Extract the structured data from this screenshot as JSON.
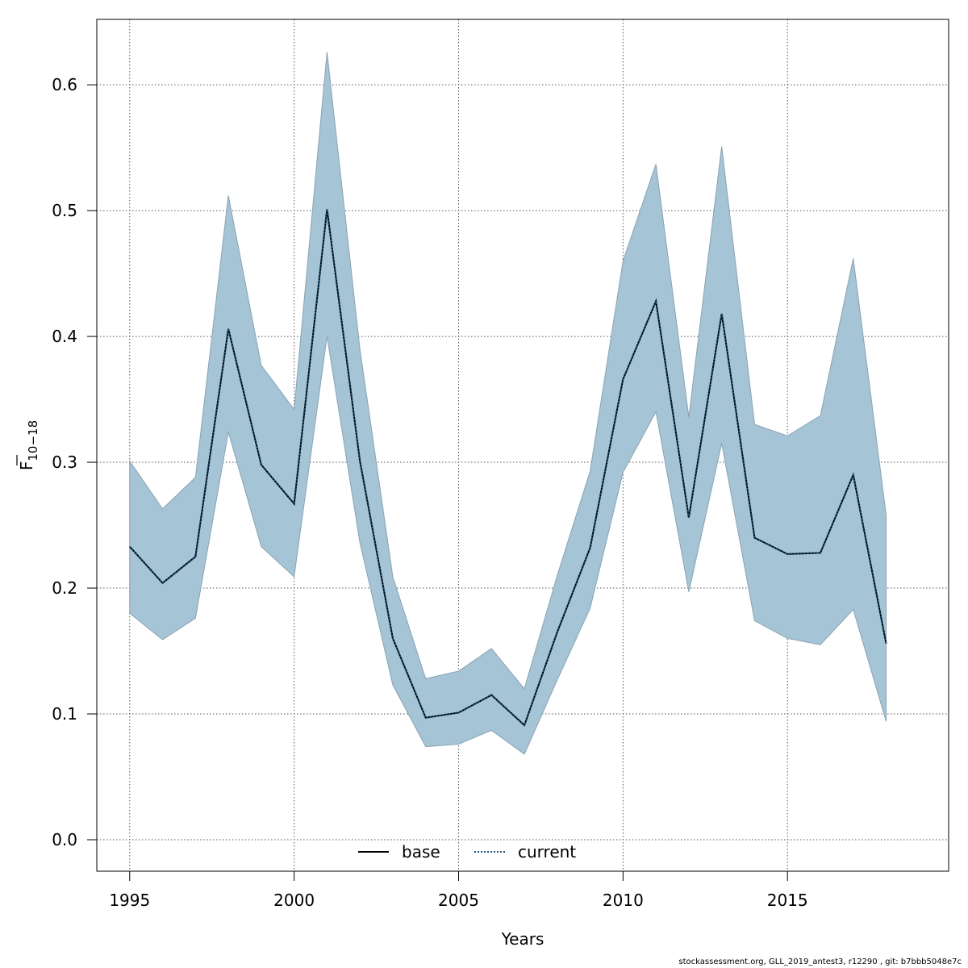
{
  "chart_data": {
    "type": "line",
    "xlabel": "Years",
    "ylabel_main": "F",
    "ylabel_sub": "10−18",
    "xlim": [
      1994,
      2019.9
    ],
    "ylim": [
      -0.025,
      0.652
    ],
    "x_ticks": [
      1995,
      2000,
      2005,
      2010,
      2015
    ],
    "y_ticks": [
      0.0,
      0.1,
      0.2,
      0.3,
      0.4,
      0.5,
      0.6
    ],
    "y_tick_labels": [
      "0.0",
      "0.1",
      "0.2",
      "0.3",
      "0.4",
      "0.5",
      "0.6"
    ],
    "grid": true,
    "legend_position": "bottom-center",
    "x": [
      1995,
      1996,
      1997,
      1998,
      1999,
      2000,
      2001,
      2002,
      2003,
      2004,
      2005,
      2006,
      2007,
      2008,
      2009,
      2010,
      2011,
      2012,
      2013,
      2014,
      2015,
      2016,
      2017,
      2018
    ],
    "series": [
      {
        "name": "base",
        "style": "solid",
        "color": "#000000",
        "values": [
          0.233,
          0.204,
          0.225,
          0.406,
          0.298,
          0.267,
          0.501,
          0.301,
          0.16,
          0.097,
          0.101,
          0.115,
          0.091,
          0.165,
          0.232,
          0.366,
          0.428,
          0.256,
          0.418,
          0.24,
          0.227,
          0.228,
          0.29,
          0.156
        ]
      },
      {
        "name": "current",
        "style": "dotted",
        "color": "#1a4f7a",
        "values": [
          0.233,
          0.204,
          0.225,
          0.406,
          0.298,
          0.267,
          0.501,
          0.301,
          0.16,
          0.097,
          0.101,
          0.115,
          0.091,
          0.165,
          0.232,
          0.366,
          0.428,
          0.256,
          0.418,
          0.24,
          0.227,
          0.228,
          0.29,
          0.156
        ]
      }
    ],
    "confidence_band": {
      "color": "#a5c4d6",
      "upper": [
        0.301,
        0.263,
        0.288,
        0.512,
        0.377,
        0.342,
        0.626,
        0.39,
        0.209,
        0.128,
        0.134,
        0.152,
        0.12,
        0.21,
        0.293,
        0.46,
        0.537,
        0.336,
        0.551,
        0.33,
        0.321,
        0.337,
        0.462,
        0.258
      ],
      "lower": [
        0.18,
        0.159,
        0.176,
        0.324,
        0.233,
        0.209,
        0.4,
        0.236,
        0.123,
        0.074,
        0.076,
        0.087,
        0.068,
        0.127,
        0.184,
        0.292,
        0.34,
        0.197,
        0.315,
        0.174,
        0.16,
        0.155,
        0.183,
        0.094
      ]
    }
  },
  "footer": "stockassessment.org, GLL_2019_antest3, r12290 , git: b7bbb5048e7c"
}
